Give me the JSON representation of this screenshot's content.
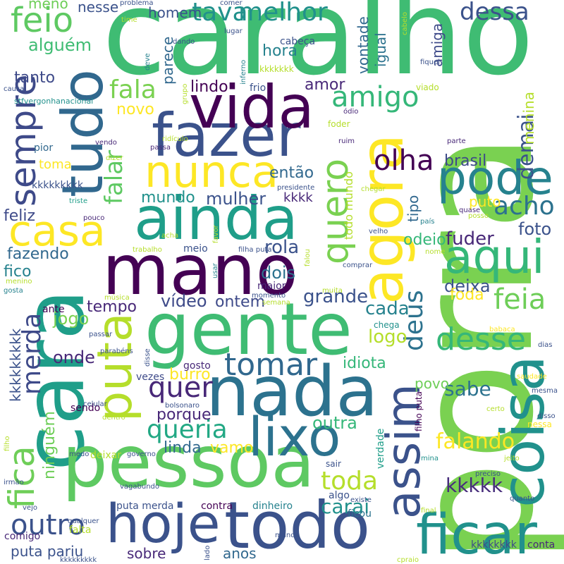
{
  "words": [
    {
      "text": "porra",
      "color": "#7ad151"
    },
    {
      "text": "caralho",
      "color": "#3fbc73"
    },
    {
      "text": "cara",
      "color": "#1f9e89"
    },
    {
      "text": "gente",
      "color": "#3fbc73"
    },
    {
      "text": "nada",
      "color": "#2c728e"
    },
    {
      "text": "pessoa",
      "color": "#5ec962"
    },
    {
      "text": "mano",
      "color": "#440154"
    },
    {
      "text": "ainda",
      "color": "#1f9e89"
    },
    {
      "text": "fazer",
      "color": "#3b528b"
    },
    {
      "text": "tudo",
      "color": "#31688e"
    },
    {
      "text": "coisa",
      "color": "#21918c"
    },
    {
      "text": "todo",
      "color": "#3b528b"
    },
    {
      "text": "hoje",
      "color": "#3b528b"
    },
    {
      "text": "agora",
      "color": "#fde725"
    },
    {
      "text": "vida",
      "color": "#440154"
    },
    {
      "text": "ficar",
      "color": "#21918c"
    },
    {
      "text": "puta",
      "color": "#b5de2b"
    },
    {
      "text": "lixo",
      "color": "#2c728e"
    },
    {
      "text": "nunca",
      "color": "#fde725"
    },
    {
      "text": "pode",
      "color": "#26828e"
    },
    {
      "text": "aqui",
      "color": "#35b779"
    },
    {
      "text": "casa",
      "color": "#fde725"
    },
    {
      "text": "sempre",
      "color": "#3e4a89"
    },
    {
      "text": "assim",
      "color": "#3b528b"
    },
    {
      "text": "feio",
      "color": "#5ec962"
    },
    {
      "text": "quero",
      "color": "#7ad151"
    },
    {
      "text": "fica",
      "color": "#6ece58"
    },
    {
      "text": "tomar",
      "color": "#31688e"
    },
    {
      "text": "desse",
      "color": "#35b779"
    },
    {
      "text": "feia",
      "color": "#6ece58"
    },
    {
      "text": "amigo",
      "color": "#35b779"
    },
    {
      "text": "queria",
      "color": "#22a884"
    },
    {
      "text": "outro",
      "color": "#3b528b"
    },
    {
      "text": "melhor",
      "color": "#21918c"
    },
    {
      "text": "tava",
      "color": "#21918c"
    },
    {
      "text": "fala",
      "color": "#7ad151"
    },
    {
      "text": "dessa",
      "color": "#3b528b"
    },
    {
      "text": "acho",
      "color": "#2c728e"
    },
    {
      "text": "olha",
      "color": "#440154"
    },
    {
      "text": "quer",
      "color": "#482878"
    },
    {
      "text": "deus",
      "color": "#2c728e"
    },
    {
      "text": "merda",
      "color": "#3e4a89"
    },
    {
      "text": "falar",
      "color": "#5ec962"
    },
    {
      "text": "demai",
      "color": "#3b528b"
    },
    {
      "text": "toda",
      "color": "#b5de2b"
    },
    {
      "text": "falando",
      "color": "#fde725"
    },
    {
      "text": "kkkkk",
      "color": "#472d7b"
    },
    {
      "text": "carai",
      "color": "#21918c"
    },
    {
      "text": "alguém",
      "color": "#3fbc73"
    },
    {
      "text": "ninguém",
      "color": "#6ece58"
    },
    {
      "text": "sabe",
      "color": "#2c728e"
    },
    {
      "text": "porque",
      "color": "#482878"
    },
    {
      "text": "vídeo",
      "color": "#3e4a89"
    },
    {
      "text": "mundo",
      "color": "#21918c"
    },
    {
      "text": "mulher",
      "color": "#3b528b"
    },
    {
      "text": "foto",
      "color": "#3b528b"
    },
    {
      "text": "fuder",
      "color": "#482878"
    },
    {
      "text": "então",
      "color": "#31688e"
    },
    {
      "text": "brasil",
      "color": "#3e4a89"
    },
    {
      "text": "jogo",
      "color": "#7ad151"
    },
    {
      "text": "tempo",
      "color": "#482878"
    },
    {
      "text": "onde",
      "color": "#482878"
    },
    {
      "text": "burro",
      "color": "#fde725"
    },
    {
      "text": "outra",
      "color": "#35b779"
    },
    {
      "text": "linda",
      "color": "#31688e"
    },
    {
      "text": "vamo",
      "color": "#fde725"
    },
    {
      "text": "cada",
      "color": "#26828e"
    },
    {
      "text": "logo",
      "color": "#b5de2b"
    },
    {
      "text": "grande",
      "color": "#3b528b"
    },
    {
      "text": "ontem",
      "color": "#3e4a89"
    },
    {
      "text": "dois",
      "color": "#2c728e"
    },
    {
      "text": "rola",
      "color": "#3b528b"
    },
    {
      "text": "deixa",
      "color": "#3b528b"
    },
    {
      "text": "foda",
      "color": "#fde725"
    },
    {
      "text": "odeio",
      "color": "#35b779"
    },
    {
      "text": "idiota",
      "color": "#35b779"
    },
    {
      "text": "fico",
      "color": "#26828e"
    },
    {
      "text": "fazendo",
      "color": "#31688e"
    },
    {
      "text": "feliz",
      "color": "#3e4a89"
    },
    {
      "text": "tanto",
      "color": "#3e4a89"
    },
    {
      "text": "lindo",
      "color": "#440154"
    },
    {
      "text": "hora",
      "color": "#26828e"
    },
    {
      "text": "amor",
      "color": "#482878"
    },
    {
      "text": "novo",
      "color": "#fde725"
    },
    {
      "text": "toma",
      "color": "#fde725"
    },
    {
      "text": "homem",
      "color": "#3b528b"
    },
    {
      "text": "nesse",
      "color": "#3b528b"
    },
    {
      "text": "meno",
      "color": "#6ece58"
    },
    {
      "text": "amiga",
      "color": "#3e4a89"
    },
    {
      "text": "igual",
      "color": "#2c728e"
    },
    {
      "text": "vontade",
      "color": "#31688e"
    },
    {
      "text": "parece",
      "color": "#31688e"
    },
    {
      "text": "menina",
      "color": "#b5de2b"
    },
    {
      "text": "tipo",
      "color": "#31688e"
    },
    {
      "text": "puto",
      "color": "#fde725"
    },
    {
      "text": "todo mundo",
      "color": "#b5de2b"
    },
    {
      "text": "povo",
      "color": "#6ece58"
    },
    {
      "text": "gosto",
      "color": "#482878"
    },
    {
      "text": "vezes",
      "color": "#3e4a89"
    },
    {
      "text": "ante",
      "color": "#440154"
    },
    {
      "text": "maior",
      "color": "#482878"
    },
    {
      "text": "puta merda",
      "color": "#3b528b"
    },
    {
      "text": "puta pariu",
      "color": "#3b528b"
    },
    {
      "text": "contra",
      "color": "#440154"
    },
    {
      "text": "dinheiro",
      "color": "#26828e"
    },
    {
      "text": "ficou",
      "color": "#2c728e"
    },
    {
      "text": "sobre",
      "color": "#482878"
    },
    {
      "text": "anos",
      "color": "#31688e"
    },
    {
      "text": "comigo",
      "color": "#482878"
    },
    {
      "text": "falta",
      "color": "#b5de2b"
    },
    {
      "text": "kkkkkkkkk",
      "color": "#3b528b"
    },
    {
      "text": "kkkkkkk",
      "color": "#b5de2b"
    },
    {
      "text": "kkkkkkkk",
      "color": "#3e4a89"
    },
    {
      "text": "kkkkk",
      "color": "#21918c"
    },
    {
      "text": "kkkk",
      "color": "#482878"
    },
    {
      "text": "conta",
      "color": "#482878"
    },
    {
      "text": "frio",
      "color": "#3b528b"
    },
    {
      "text": "cabeça",
      "color": "#3b528b"
    },
    {
      "text": "chega",
      "color": "#21918c"
    },
    {
      "text": "viado",
      "color": "#b5de2b"
    },
    {
      "text": "foder",
      "color": "#b5de2b"
    },
    {
      "text": "deixar",
      "color": "#b5de2b"
    },
    {
      "text": "sair",
      "color": "#3b528b"
    },
    {
      "text": "sendo",
      "color": "#440154"
    },
    {
      "text": "verdade",
      "color": "#1f9e89"
    },
    {
      "text": "filho puta",
      "color": "#440154"
    },
    {
      "text": "nessa",
      "color": "#fde725"
    },
    {
      "text": "stfvergonhanacional",
      "color": "#21918c"
    },
    {
      "text": "problema",
      "color": "#3b528b"
    },
    {
      "text": "time",
      "color": "#b5de2b"
    },
    {
      "text": "comer",
      "color": "#3b528b"
    },
    {
      "text": "cabelo",
      "color": "#b5de2b"
    },
    {
      "text": "fiquei",
      "color": "#3b528b"
    },
    {
      "text": "lugar",
      "color": "#3b528b"
    },
    {
      "text": "inferno",
      "color": "#26828e"
    },
    {
      "text": "deve",
      "color": "#26828e"
    },
    {
      "text": "dando",
      "color": "#3b528b"
    },
    {
      "text": "grupo",
      "color": "#b5de2b"
    },
    {
      "text": "causa",
      "color": "#3b528b"
    },
    {
      "text": "ódio",
      "color": "#482878"
    },
    {
      "text": "pior",
      "color": "#31688e"
    },
    {
      "text": "vendo",
      "color": "#482878"
    },
    {
      "text": "dizer",
      "color": "#b5de2b"
    },
    {
      "text": "ridículo",
      "color": "#b5de2b"
    },
    {
      "text": "passa",
      "color": "#482878"
    },
    {
      "text": "ruim",
      "color": "#482878"
    },
    {
      "text": "parte",
      "color": "#482878"
    },
    {
      "text": "presidente",
      "color": "#3b528b"
    },
    {
      "text": "chegar",
      "color": "#b5de2b"
    },
    {
      "text": "triste",
      "color": "#1f9e89"
    },
    {
      "text": "pouco",
      "color": "#482878"
    },
    {
      "text": "quase",
      "color": "#482878"
    },
    {
      "text": "posso",
      "color": "#b5de2b"
    },
    {
      "text": "país",
      "color": "#26828e"
    },
    {
      "text": "velho",
      "color": "#3b528b"
    },
    {
      "text": "favor",
      "color": "#b5de2b"
    },
    {
      "text": "acha",
      "color": "#b5de2b"
    },
    {
      "text": "trabalho",
      "color": "#b5de2b"
    },
    {
      "text": "meio",
      "color": "#3b528b"
    },
    {
      "text": "filha puta",
      "color": "#3b528b"
    },
    {
      "text": "nome",
      "color": "#b5de2b"
    },
    {
      "text": "falou",
      "color": "#b5de2b"
    },
    {
      "text": "usar",
      "color": "#26828e"
    },
    {
      "text": "comprar",
      "color": "#3b528b"
    },
    {
      "text": "menino",
      "color": "#b5de2b"
    },
    {
      "text": "gosta",
      "color": "#26828e"
    },
    {
      "text": "música",
      "color": "#b5de2b"
    },
    {
      "text": "semana",
      "color": "#b5de2b"
    },
    {
      "text": "momento",
      "color": "#3b528b"
    },
    {
      "text": "muita",
      "color": "#b5de2b"
    },
    {
      "text": "passar",
      "color": "#3b528b"
    },
    {
      "text": "parabéns",
      "color": "#3b528b"
    },
    {
      "text": "disse",
      "color": "#3b528b"
    },
    {
      "text": "babaca",
      "color": "#fde725"
    },
    {
      "text": "dias",
      "color": "#3b528b"
    },
    {
      "text": "saudade",
      "color": "#fde725"
    },
    {
      "text": "mesma",
      "color": "#3b528b"
    },
    {
      "text": "celular",
      "color": "#3b528b"
    },
    {
      "text": "bolsonaro",
      "color": "#3b528b"
    },
    {
      "text": "dentro",
      "color": "#b5de2b"
    },
    {
      "text": "certo",
      "color": "#b5de2b"
    },
    {
      "text": "disso",
      "color": "#3b528b"
    },
    {
      "text": "filho",
      "color": "#b5de2b"
    },
    {
      "text": "medo",
      "color": "#3b528b"
    },
    {
      "text": "governo",
      "color": "#3b528b"
    },
    {
      "text": "mina",
      "color": "#21918c"
    },
    {
      "text": "jeito",
      "color": "#b5de2b"
    },
    {
      "text": "irmão",
      "color": "#3b528b"
    },
    {
      "text": "vagabundo",
      "color": "#3b528b"
    },
    {
      "text": "preciso",
      "color": "#3b528b"
    },
    {
      "text": "quanto",
      "color": "#3b528b"
    },
    {
      "text": "vejo",
      "color": "#3b528b"
    },
    {
      "text": "qualquer",
      "color": "#3b528b"
    },
    {
      "text": "algo",
      "color": "#3b528b"
    },
    {
      "text": "existe",
      "color": "#3b528b"
    },
    {
      "text": "final",
      "color": "#b5de2b"
    },
    {
      "text": "manda",
      "color": "#3b528b"
    },
    {
      "text": "lado",
      "color": "#3b528b"
    },
    {
      "text": "cpraio",
      "color": "#b5de2b"
    }
  ]
}
